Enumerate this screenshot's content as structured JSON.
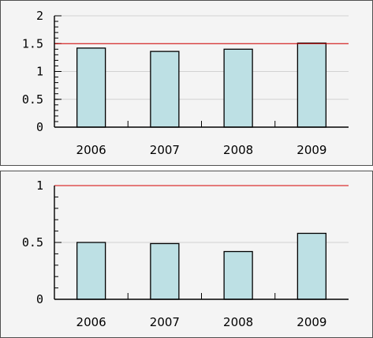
{
  "chart_data": [
    {
      "type": "bar",
      "categories": [
        "2006",
        "2007",
        "2008",
        "2009"
      ],
      "values": [
        1.42,
        1.36,
        1.4,
        1.51
      ],
      "reference_line": 1.5,
      "ylim": [
        0,
        2
      ],
      "y_ticks": [
        "0",
        "0.5",
        "1",
        "1.5",
        "2"
      ],
      "y_tick_values": [
        0,
        0.5,
        1,
        1.5,
        2
      ],
      "grid": true,
      "bar_color": "#bde0e4",
      "reference_color": "#d40000"
    },
    {
      "type": "bar",
      "categories": [
        "2006",
        "2007",
        "2008",
        "2009"
      ],
      "values": [
        0.5,
        0.49,
        0.42,
        0.58
      ],
      "reference_line": 1.0,
      "ylim": [
        0,
        1
      ],
      "y_ticks": [
        "0",
        "0.5",
        "1"
      ],
      "y_tick_values": [
        0,
        0.5,
        1
      ],
      "grid": true,
      "bar_color": "#bde0e4",
      "reference_color": "#d40000"
    }
  ]
}
